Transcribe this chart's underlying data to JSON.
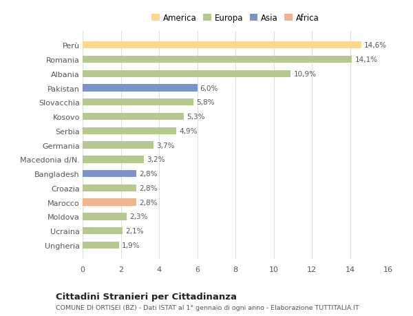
{
  "categories": [
    "Ungheria",
    "Ucraina",
    "Moldova",
    "Marocco",
    "Croazia",
    "Bangladesh",
    "Macedonia d/N.",
    "Germania",
    "Serbia",
    "Kosovo",
    "Slovacchia",
    "Pakistan",
    "Albania",
    "Romania",
    "Perù"
  ],
  "values": [
    1.9,
    2.1,
    2.3,
    2.8,
    2.8,
    2.8,
    3.2,
    3.7,
    4.9,
    5.3,
    5.8,
    6.0,
    10.9,
    14.1,
    14.6
  ],
  "colors": [
    "#b5c98e",
    "#b5c98e",
    "#b5c98e",
    "#f0b48a",
    "#b5c98e",
    "#7b93c9",
    "#b5c98e",
    "#b5c98e",
    "#b5c98e",
    "#b5c98e",
    "#b5c98e",
    "#7b93c9",
    "#b5c98e",
    "#b5c98e",
    "#fdd888"
  ],
  "labels": [
    "1,9%",
    "2,1%",
    "2,3%",
    "2,8%",
    "2,8%",
    "2,8%",
    "3,2%",
    "3,7%",
    "4,9%",
    "5,3%",
    "5,8%",
    "6,0%",
    "10,9%",
    "14,1%",
    "14,6%"
  ],
  "legend": [
    {
      "label": "America",
      "color": "#fdd888"
    },
    {
      "label": "Europa",
      "color": "#b5c98e"
    },
    {
      "label": "Asia",
      "color": "#7b93c9"
    },
    {
      "label": "Africa",
      "color": "#f0b48a"
    }
  ],
  "title": "Cittadini Stranieri per Cittadinanza",
  "subtitle": "COMUNE DI ORTISEI (BZ) - Dati ISTAT al 1° gennaio di ogni anno - Elaborazione TUTTITALIA.IT",
  "xlim": [
    0,
    16
  ],
  "xticks": [
    0,
    2,
    4,
    6,
    8,
    10,
    12,
    14,
    16
  ],
  "bg_color": "#ffffff",
  "grid_color": "#dddddd",
  "bar_height": 0.5
}
